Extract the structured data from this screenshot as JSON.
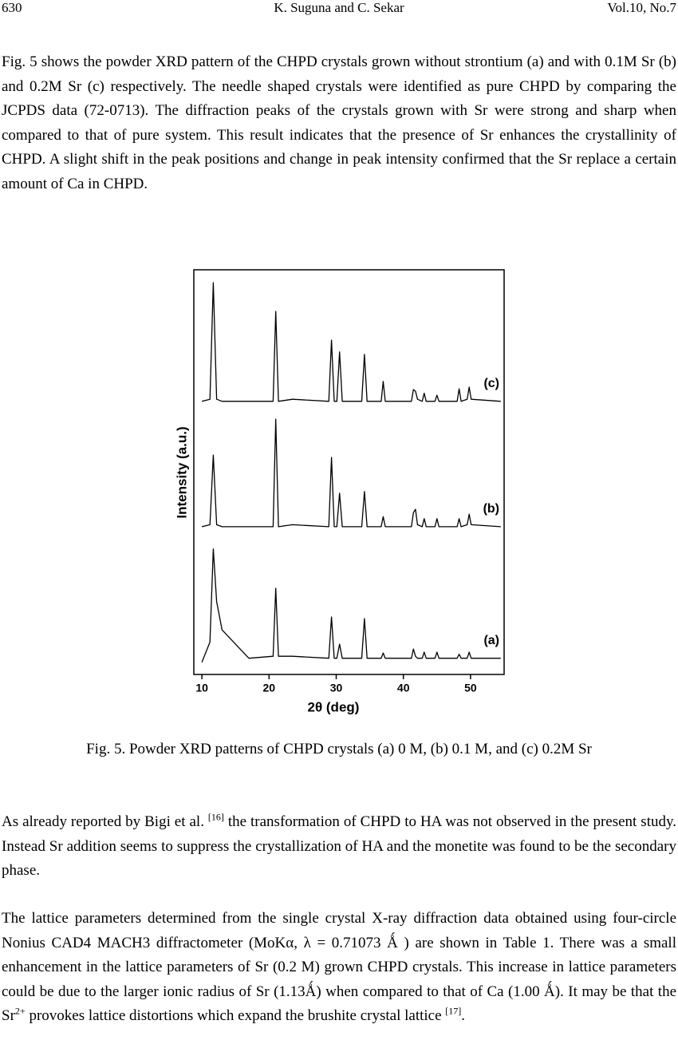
{
  "header": {
    "page": "630",
    "authors": "K. Suguna and C. Sekar",
    "volume": "Vol.10, No.7"
  },
  "paragraphs": [
    [
      "Fig. 5 shows the powder XRD pattern of the CHPD crystals grown without strontium (a) and with 0.1M Sr (b) and 0.2M Sr (c) respectively. The needle shaped crystals were identified as pure CHPD by comparing the JCPDS data (72-0713). The diffraction peaks of the crystals grown with Sr were strong and sharp when compared to that of pure system. This result indicates that the presence of Sr enhances the crystallinity of CHPD. A slight shift in the peak positions and change in peak intensity confirmed that the Sr replace a certain amount of Ca in CHPD."
    ],
    [
      "As already reported by Bigi et al. ",
      "[16]",
      " the transformation of CHPD to HA was not observed in the present study. Instead Sr addition seems to suppress the crystallization of HA and the monetite was found to be the secondary phase."
    ],
    [
      "The lattice parameters determined from the single crystal X-ray diffraction data obtained using four-circle Nonius CAD4 MACH3 diffractometer (MoKα, λ = 0.71073 Ǻ ) are shown in Table 1. There was a small enhancement in the lattice parameters of Sr (0.2 M) grown CHPD crystals. This increase in lattice parameters could be due to the larger ionic radius of Sr (1.13Ǻ) when compared to that of Ca (1.00 Ǻ).  It may be that the Sr",
      "2+",
      " provokes lattice distortions which expand the brushite crystal lattice ",
      "[17]",
      "."
    ]
  ],
  "figure_caption": "Fig. 5. Powder XRD patterns of CHPD crystals (a) 0 M, (b) 0.1 M, and (c) 0.2M Sr",
  "chart_data": {
    "type": "line",
    "x_label": "2θ (deg)",
    "y_label": "Intensity (a.u.)",
    "x": [
      10,
      11.2,
      11.7,
      12.2,
      13,
      17,
      20.6,
      21.0,
      21.4,
      23.5,
      28.9,
      29.3,
      29.7,
      30.1,
      30.5,
      30.9,
      33.8,
      34.2,
      34.6,
      36.7,
      37.0,
      37.3,
      41.2,
      41.5,
      41.8,
      42.1,
      42.8,
      43.1,
      43.4,
      44.7,
      45.0,
      45.3,
      48.0,
      48.3,
      48.6,
      49.5,
      49.8,
      50.1,
      54.5
    ],
    "series": [
      {
        "name": "(a)",
        "color": "#000000",
        "values": [
          3,
          8,
          31,
          18,
          11,
          4,
          4.5,
          21.3,
          4.5,
          4.5,
          4,
          14.2,
          4,
          4,
          7.5,
          4,
          4,
          13.8,
          4,
          4,
          5.3,
          4,
          4,
          6.3,
          4.5,
          4,
          4,
          5.5,
          4,
          4,
          5.5,
          4,
          4,
          5,
          4,
          4,
          5.5,
          4,
          4
        ]
      },
      {
        "name": "(b)",
        "color": "#000000",
        "values": [
          36.5,
          37,
          54.2,
          37,
          36.5,
          36.5,
          36.5,
          63.1,
          36.5,
          37,
          36.5,
          53.6,
          36.5,
          36.5,
          44.8,
          36.5,
          36.5,
          45.2,
          36.5,
          36.5,
          39,
          36.5,
          36.5,
          40,
          40.8,
          37,
          36.5,
          38.5,
          36.5,
          36.5,
          38.5,
          36.5,
          36.5,
          38.5,
          36.5,
          37,
          39.6,
          37,
          36.5
        ]
      },
      {
        "name": "(c)",
        "color": "#000000",
        "values": [
          67.5,
          68,
          96.8,
          68,
          67.5,
          67.5,
          67.5,
          89.7,
          67.5,
          68,
          67.5,
          82.6,
          67.5,
          67.5,
          79.7,
          67.5,
          67.5,
          79.1,
          67.5,
          67.5,
          72.4,
          67.5,
          67.5,
          70.4,
          70,
          68,
          67.5,
          69.5,
          67.5,
          67.5,
          69,
          67.5,
          67.5,
          70.6,
          67.5,
          68,
          71,
          68,
          67.5
        ]
      }
    ],
    "xlim": [
      8.8,
      55
    ],
    "xticks": [
      10,
      20,
      30,
      40,
      50
    ],
    "ylim": [
      0,
      100
    ]
  }
}
